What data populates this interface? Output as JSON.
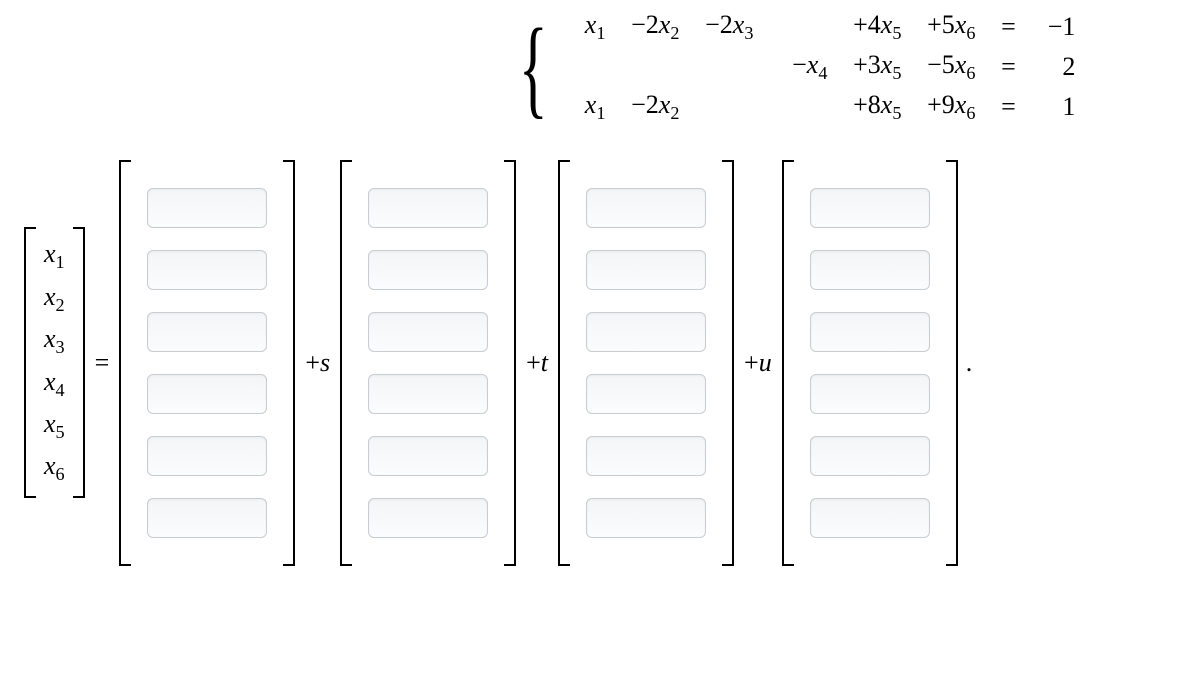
{
  "system": {
    "brace_glyph": "{",
    "rows": [
      {
        "c1": {
          "sign": "",
          "coef": "",
          "var": "x",
          "sub": "1"
        },
        "c2": {
          "sign": "−",
          "coef": "2",
          "var": "x",
          "sub": "2"
        },
        "c3": {
          "sign": "−",
          "coef": "2",
          "var": "x",
          "sub": "3"
        },
        "c4": null,
        "c5": {
          "sign": "+",
          "coef": "4",
          "var": "x",
          "sub": "5"
        },
        "c6": {
          "sign": "+",
          "coef": "5",
          "var": "x",
          "sub": "6"
        },
        "eq": "=",
        "rhs": "−1"
      },
      {
        "c1": null,
        "c2": null,
        "c3": null,
        "c4": {
          "sign": "−",
          "coef": "",
          "var": "x",
          "sub": "4"
        },
        "c5": {
          "sign": "+",
          "coef": "3",
          "var": "x",
          "sub": "5"
        },
        "c6": {
          "sign": "−",
          "coef": "5",
          "var": "x",
          "sub": "6"
        },
        "eq": "=",
        "rhs": "2"
      },
      {
        "c1": {
          "sign": "",
          "coef": "",
          "var": "x",
          "sub": "1"
        },
        "c2": {
          "sign": "−",
          "coef": "2",
          "var": "x",
          "sub": "2"
        },
        "c3": null,
        "c4": null,
        "c5": {
          "sign": "+",
          "coef": "8",
          "var": "x",
          "sub": "5"
        },
        "c6": {
          "sign": "+",
          "coef": "9",
          "var": "x",
          "sub": "6"
        },
        "eq": "=",
        "rhs": "1"
      }
    ]
  },
  "vector_equation": {
    "lhs_vars": [
      "x_1",
      "x_2",
      "x_3",
      "x_4",
      "x_5",
      "x_6"
    ],
    "equals": "=",
    "terms": [
      {
        "prefix": "",
        "param": "",
        "inputs": 6
      },
      {
        "prefix": "+",
        "param": "s",
        "inputs": 6
      },
      {
        "prefix": "+",
        "param": "t",
        "inputs": 6
      },
      {
        "prefix": "+",
        "param": "u",
        "inputs": 6
      }
    ],
    "trailing": "."
  },
  "style": {
    "input_border": "#c9ccd1",
    "input_bg_top": "#f4f5f7",
    "input_bg_bot": "#fbfcfd",
    "text_color": "#000000",
    "page_bg": "#ffffff",
    "font_size_main": 26,
    "vec_count": 6
  }
}
